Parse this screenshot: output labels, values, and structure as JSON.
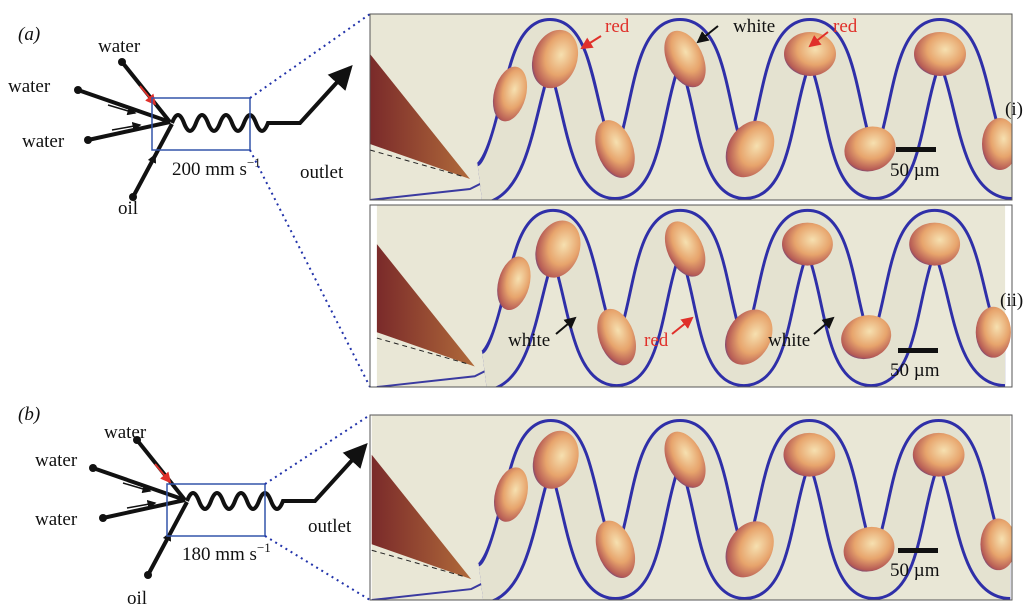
{
  "panel_a": {
    "label": "(a)",
    "inlets": [
      "water",
      "water",
      "water"
    ],
    "oil": "oil",
    "flow_rate": {
      "base": "200 mm s",
      "exponent": "−1"
    },
    "outlet": "outlet",
    "images": [
      {
        "label": "(i)",
        "annotations": [
          "red",
          "white",
          "red"
        ],
        "scale_bar": "50 µm"
      },
      {
        "label": "(ii)",
        "annotations": [
          "white",
          "red",
          "white"
        ],
        "scale_bar": "50 µm"
      }
    ]
  },
  "panel_b": {
    "label": "(b)",
    "inlets": [
      "water",
      "water",
      "water"
    ],
    "oil": "oil",
    "flow_rate": {
      "base": "180 mm s",
      "exponent": "−1"
    },
    "outlet": "outlet",
    "images": [
      {
        "scale_bar": "50 µm"
      }
    ]
  }
}
